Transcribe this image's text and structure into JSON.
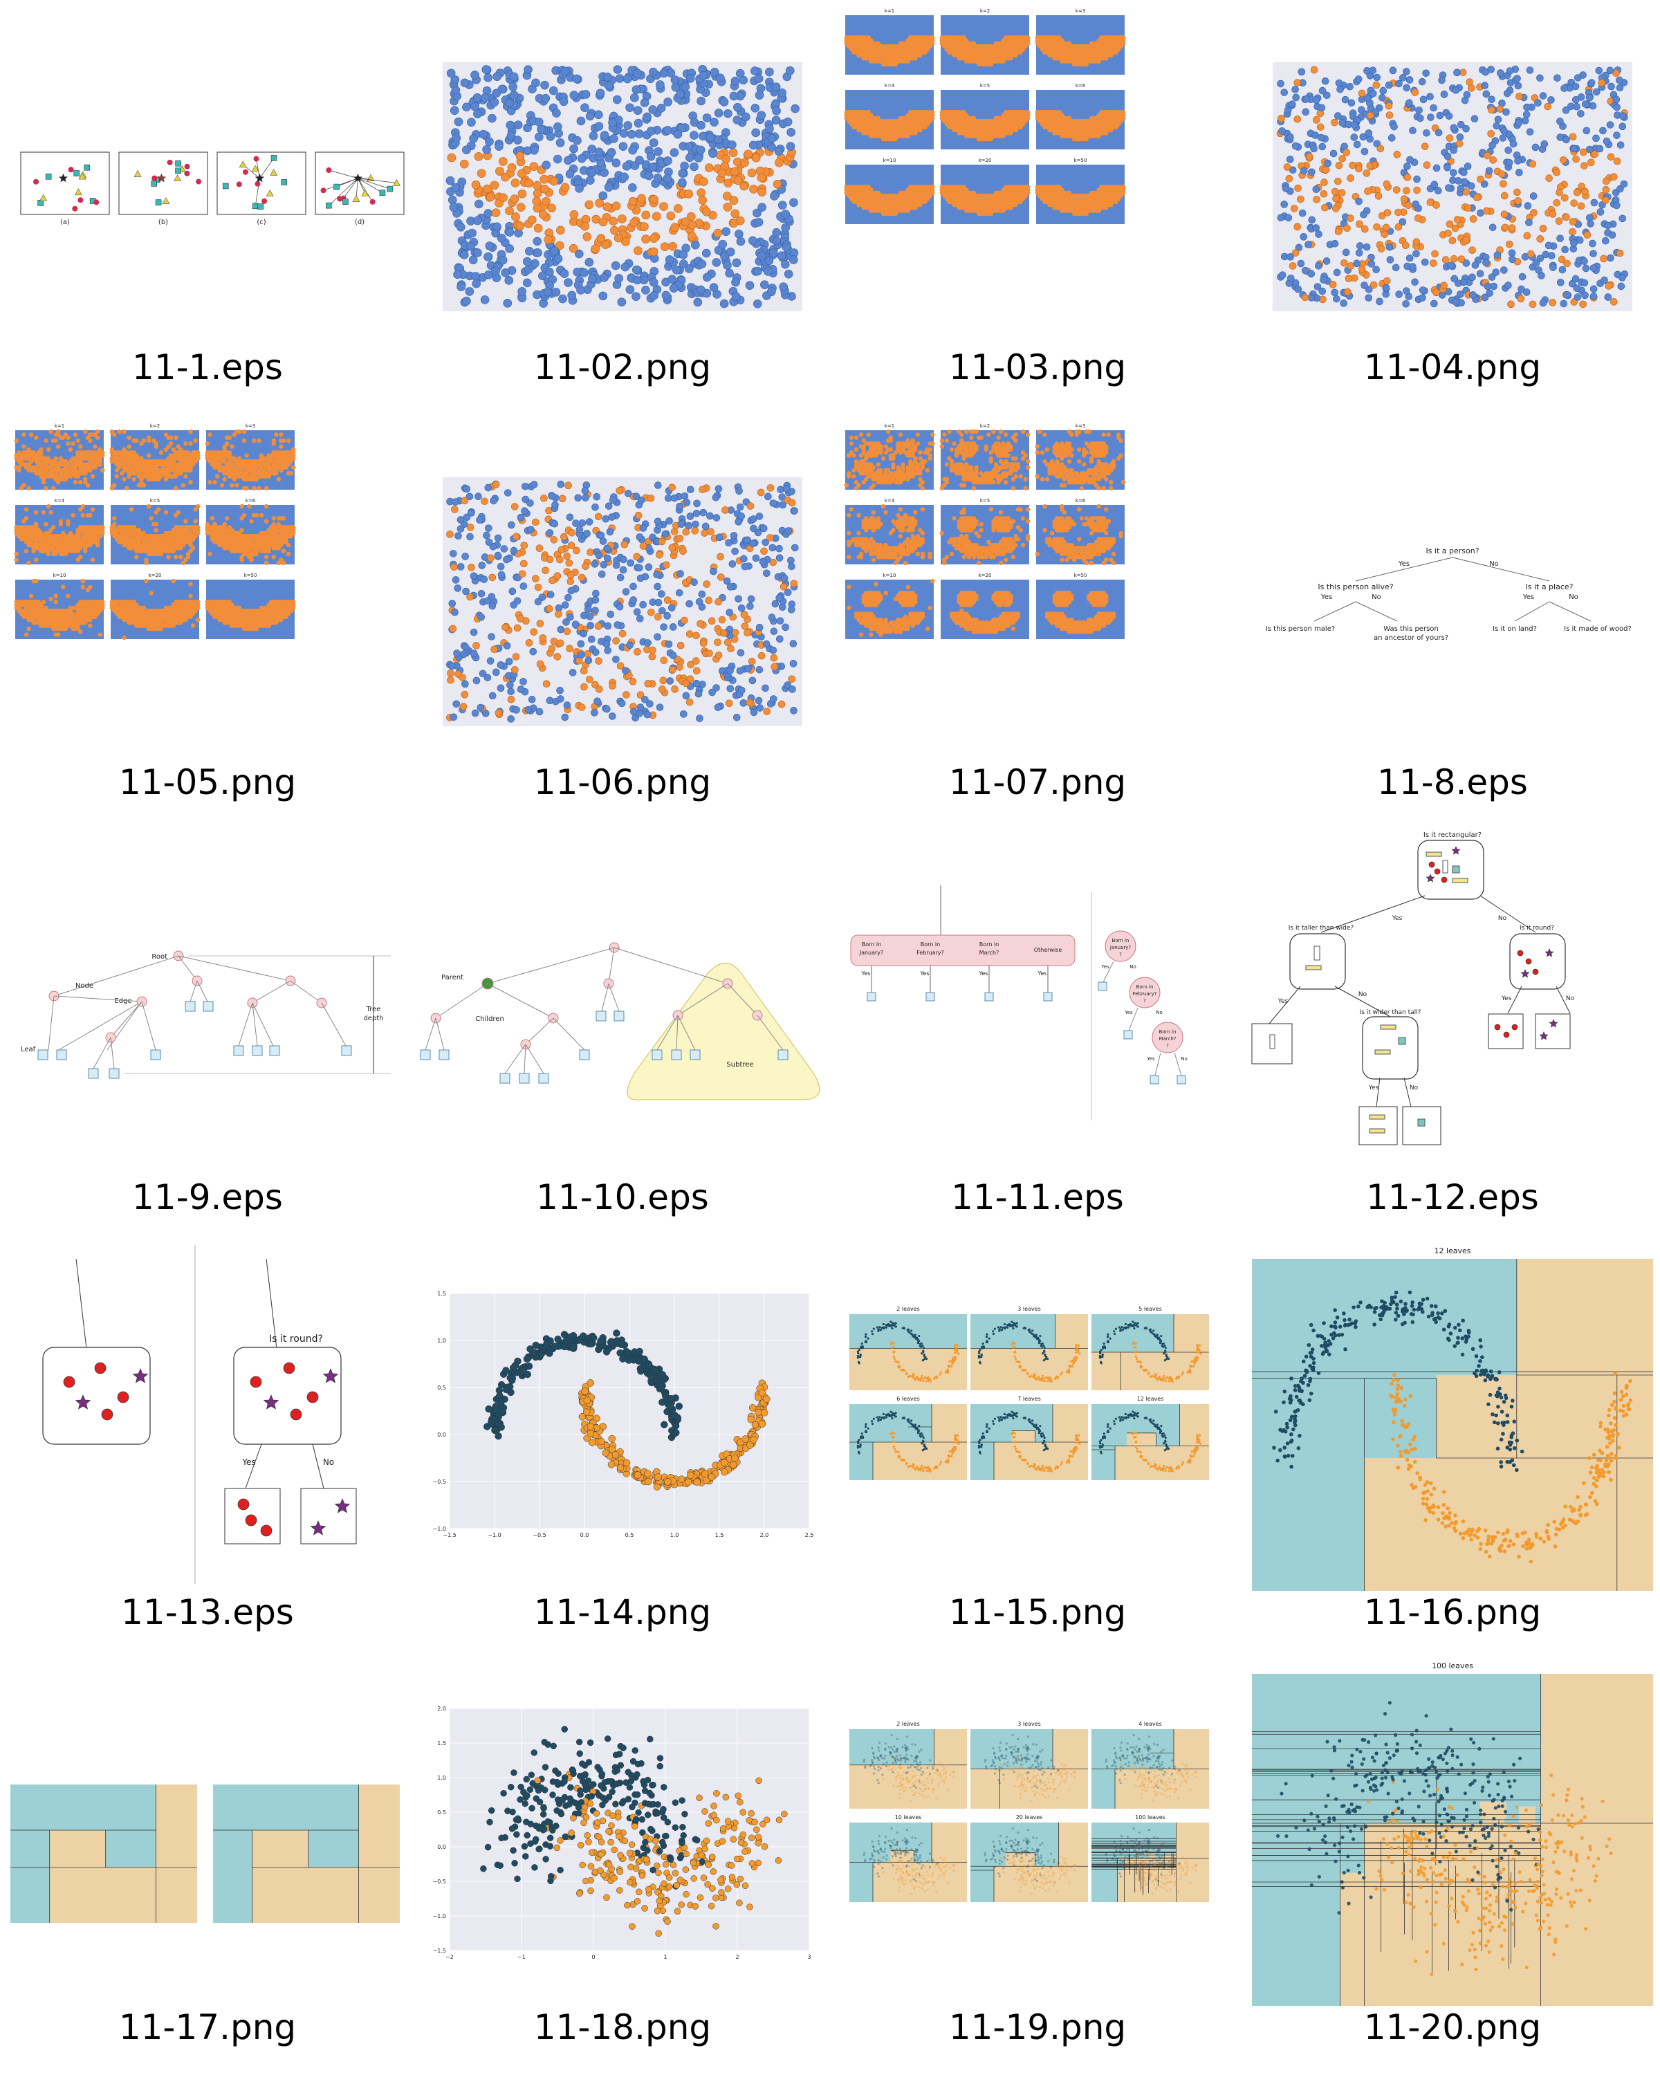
{
  "files": [
    {
      "name": "11-1.eps",
      "kind": "knn-panels",
      "labels": [
        "(a)",
        "(b)",
        "(c)",
        "(d)"
      ]
    },
    {
      "name": "11-02.png",
      "kind": "scatter-smile"
    },
    {
      "name": "11-03.png",
      "kind": "k-grid-smooth",
      "labels": [
        "k=1",
        "k=2",
        "k=3",
        "k=4",
        "k=5",
        "k=6",
        "k=10",
        "k=20",
        "k=50"
      ]
    },
    {
      "name": "11-04.png",
      "kind": "scatter-noisy"
    },
    {
      "name": "11-05.png",
      "kind": "k-grid-rough",
      "labels": [
        "k=1",
        "k=2",
        "k=3",
        "k=4",
        "k=5",
        "k=6",
        "k=10",
        "k=20",
        "k=50"
      ]
    },
    {
      "name": "11-06.png",
      "kind": "scatter-face"
    },
    {
      "name": "11-07.png",
      "kind": "k-grid-face",
      "labels": [
        "k=1",
        "k=2",
        "k=3",
        "k=4",
        "k=5",
        "k=6",
        "k=10",
        "k=20",
        "k=50"
      ]
    },
    {
      "name": "11-8.eps",
      "kind": "question-tree",
      "labels": [
        "Is it a person?",
        "Yes",
        "No",
        "Is this person alive?",
        "Yes",
        "No",
        "Is it a place?",
        "Yes",
        "No",
        "Is this person male?",
        "Was this person",
        "an ancestor of yours?",
        "Is it on land?",
        "Is it made of wood?"
      ]
    },
    {
      "name": "11-9.eps",
      "kind": "tree-terms",
      "labels": [
        "Root",
        "Node",
        "Edge",
        "Leaf",
        "Tree",
        "depth"
      ]
    },
    {
      "name": "11-10.eps",
      "kind": "tree-family",
      "labels": [
        "Parent",
        "Children",
        "Subtree"
      ]
    },
    {
      "name": "11-11.eps",
      "kind": "month-split",
      "labels": [
        "Born in",
        "January?",
        "February?",
        "March?",
        "Otherwise",
        "Yes",
        "Yes",
        "Yes",
        "Yes",
        "No"
      ]
    },
    {
      "name": "11-12.eps",
      "kind": "shape-tree",
      "labels": [
        "Is it rectangular?",
        "Yes",
        "No",
        "Is it taller than wide?",
        "Is it round?",
        "Yes",
        "No",
        "Is it wider than tall?",
        "Yes",
        "No",
        "Yes",
        "No"
      ]
    },
    {
      "name": "11-13.eps",
      "kind": "split-node",
      "labels": [
        "Is it round?",
        "Yes",
        "No"
      ]
    },
    {
      "name": "11-14.png",
      "kind": "moons",
      "xticks": [
        "−1.5",
        "−1.0",
        "−0.5",
        "0.0",
        "0.5",
        "1.0",
        "1.5",
        "2.0",
        "2.5"
      ],
      "yticks": [
        "1.5",
        "1.0",
        "0.5",
        "0.0",
        "−0.5",
        "−1.0"
      ]
    },
    {
      "name": "11-15.png",
      "kind": "leaves-grid-clean",
      "labels": [
        "2 leaves",
        "3 leaves",
        "5 leaves",
        "6 leaves",
        "7 leaves",
        "12 leaves"
      ]
    },
    {
      "name": "11-16.png",
      "kind": "leaves-big-clean",
      "labels": [
        "12 leaves"
      ]
    },
    {
      "name": "11-17.png",
      "kind": "region-pair"
    },
    {
      "name": "11-18.png",
      "kind": "noisy-moons",
      "xticks": [
        "−2",
        "−1",
        "0",
        "1",
        "2",
        "3"
      ],
      "yticks": [
        "2.0",
        "1.5",
        "1.0",
        "0.5",
        "0.0",
        "−0.5",
        "−1.0",
        "−1.5"
      ]
    },
    {
      "name": "11-19.png",
      "kind": "leaves-grid-noisy",
      "labels": [
        "2 leaves",
        "3 leaves",
        "4 leaves",
        "10 leaves",
        "20 leaves",
        "100 leaves"
      ]
    },
    {
      "name": "11-20.png",
      "kind": "leaves-big-noisy",
      "labels": [
        "100 leaves"
      ]
    }
  ],
  "colors": {
    "blue": "#5b86cf",
    "orange": "#f28e3a",
    "teal": "#9cd0d5",
    "tan": "#edd2a6",
    "navy": "#1f4b63",
    "moonorange": "#f39a2d",
    "pink": "#f6d3d6",
    "lightblue": "#d7ecf6",
    "red": "#e02020",
    "purple": "#7b2d83",
    "yellow": "#f3e48e",
    "bgray": "#e9e9f1"
  }
}
